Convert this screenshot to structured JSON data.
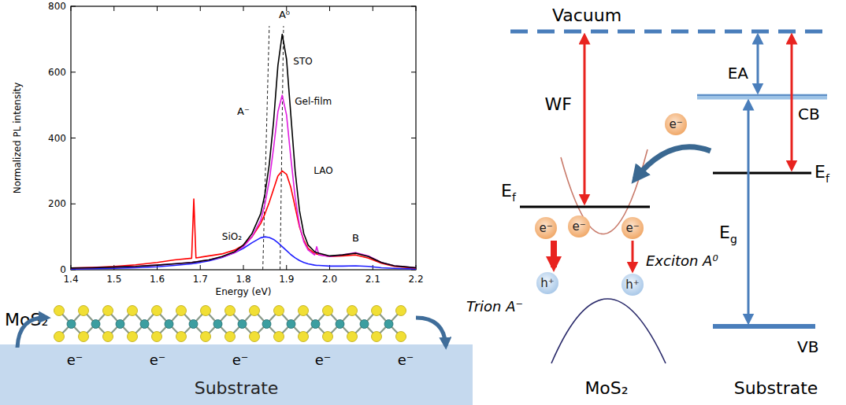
{
  "chart_data": {
    "type": "line",
    "x_label": "Energy (eV)",
    "y_label": "Normalized PL intensity",
    "x": [
      1.4,
      1.45,
      1.5,
      1.55,
      1.6,
      1.64,
      1.68,
      1.685,
      1.69,
      1.72,
      1.75,
      1.78,
      1.8,
      1.82,
      1.84,
      1.85,
      1.86,
      1.87,
      1.88,
      1.89,
      1.9,
      1.91,
      1.92,
      1.93,
      1.94,
      1.95,
      1.965,
      1.97,
      1.975,
      2,
      2.03,
      2.06,
      2.09,
      2.12,
      2.15,
      2.2
    ],
    "series": [
      {
        "name": "STO",
        "color": "#000000",
        "values": [
          5,
          6,
          8,
          10,
          14,
          18,
          22,
          23,
          24,
          30,
          40,
          55,
          75,
          110,
          170,
          230,
          320,
          450,
          620,
          715,
          640,
          470,
          300,
          180,
          110,
          75,
          55,
          52,
          50,
          42,
          45,
          50,
          40,
          22,
          12,
          6
        ]
      },
      {
        "name": "Gel-film",
        "color": "#e01fe0",
        "values": [
          5,
          6,
          8,
          10,
          14,
          18,
          22,
          23,
          24,
          30,
          38,
          52,
          70,
          100,
          150,
          200,
          270,
          370,
          480,
          530,
          470,
          340,
          220,
          135,
          85,
          60,
          45,
          70,
          45,
          40,
          45,
          52,
          42,
          22,
          12,
          6
        ]
      },
      {
        "name": "LAO",
        "color": "#ff0000",
        "values": [
          5,
          7,
          10,
          15,
          22,
          30,
          35,
          215,
          36,
          42,
          48,
          60,
          75,
          100,
          140,
          170,
          205,
          245,
          285,
          300,
          290,
          250,
          190,
          130,
          90,
          65,
          50,
          48,
          46,
          40,
          42,
          45,
          35,
          20,
          10,
          5
        ]
      },
      {
        "name": "SiO₂",
        "color": "#1f1fff",
        "values": [
          2,
          3,
          4,
          6,
          9,
          13,
          18,
          19,
          20,
          27,
          37,
          52,
          65,
          82,
          97,
          100,
          98,
          92,
          82,
          70,
          58,
          46,
          36,
          28,
          22,
          18,
          14,
          13,
          13,
          11,
          11,
          12,
          10,
          6,
          4,
          2
        ]
      }
    ],
    "xlim": [
      1.4,
      2.2
    ],
    "ylim": [
      0,
      800
    ],
    "xticks": [
      1.4,
      1.5,
      1.6,
      1.7,
      1.8,
      1.9,
      {
        "value": 2,
        "label": "2.0"
      },
      2.1,
      2.2
    ],
    "yticks": [
      0,
      200,
      400,
      600,
      800
    ],
    "grid": false,
    "annotations": [
      {
        "text": "A⁰",
        "x": 1.895,
        "y": 765
      },
      {
        "text": "A⁻",
        "x": 1.8,
        "y": 470
      },
      {
        "text": "B",
        "x": 2.06,
        "y": 85
      }
    ],
    "reference_lines": [
      {
        "x": [
          1.845,
          1.86
        ],
        "y": [
          0,
          740
        ]
      },
      {
        "x": [
          1.885,
          1.893
        ],
        "y": [
          0,
          740
        ]
      }
    ]
  },
  "structure": {
    "layer_label": "MoS₂",
    "substrate_label": "Substrate",
    "electrons": [
      "e⁻",
      "e⁻",
      "e⁻",
      "e⁻",
      "e⁻"
    ]
  },
  "band_diagram": {
    "vacuum": "Vacuum",
    "work_function": "WF",
    "electron_affinity": "EA",
    "conduction_band": "CB",
    "valence_band": "VB",
    "fermi_level": {
      "base": "E",
      "sub": "f"
    },
    "band_gap": {
      "base": "E",
      "sub": "g"
    },
    "electron": "e⁻",
    "hole": "h⁺",
    "trion": "Trion A⁻",
    "exciton": "Exciton A⁰",
    "left_label": "MoS₂",
    "right_label": "Substrate"
  }
}
